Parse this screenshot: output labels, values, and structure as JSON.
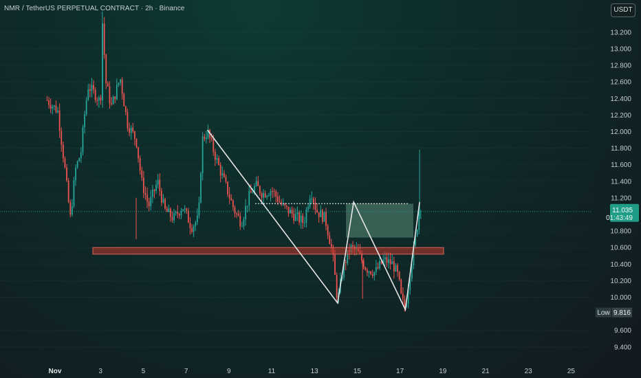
{
  "header": {
    "title": "NMR / TetherUS PERPETUAL CONTRACT · 2h · Binance",
    "currency_button": "USDT"
  },
  "colors": {
    "up": "#26a69a",
    "down": "#ef5350",
    "support_zone": "#c0392b",
    "target_box": "#8fd3b0",
    "pattern_line": "#e6e6e6",
    "price_tag": "#1f9d87"
  },
  "price_axis": {
    "ticks": [
      "13.200",
      "13.000",
      "12.800",
      "12.600",
      "12.400",
      "12.200",
      "12.000",
      "11.800",
      "11.600",
      "11.400",
      "11.200",
      "10.800",
      "10.600",
      "10.400",
      "10.200",
      "10.000",
      "9.600",
      "9.400"
    ]
  },
  "time_axis": {
    "labels": [
      "Nov",
      "3",
      "5",
      "7",
      "9",
      "11",
      "13",
      "15",
      "17",
      "19",
      "21",
      "23",
      "25"
    ]
  },
  "price_tag": {
    "price": "11.035",
    "countdown": "01:43:49"
  },
  "low_tag": {
    "label": "Low",
    "value": "9.816"
  },
  "chart_data": {
    "type": "candlestick",
    "symbol": "NMR / TetherUS PERPETUAL CONTRACT",
    "interval": "2h",
    "exchange": "Binance",
    "y_axis_ticks": [
      13.2,
      13.0,
      12.8,
      12.6,
      12.4,
      12.2,
      12.0,
      11.8,
      11.6,
      11.4,
      11.2,
      10.8,
      10.6,
      10.4,
      10.2,
      10.0,
      9.6,
      9.4
    ],
    "x_axis_ticks": [
      "Nov",
      "3",
      "5",
      "7",
      "9",
      "11",
      "13",
      "15",
      "17",
      "19",
      "21",
      "23",
      "25"
    ],
    "close_path": [
      [
        "Oct 31 12:00",
        12.38
      ],
      [
        "Nov 1 00:00",
        12.25
      ],
      [
        "Nov 1 08:00",
        11.55
      ],
      [
        "Nov 1 14:00",
        10.95
      ],
      [
        "Nov 1 20:00",
        11.55
      ],
      [
        "Nov 2 02:00",
        11.75
      ],
      [
        "Nov 2 06:00",
        12.2
      ],
      [
        "Nov 2 10:00",
        12.55
      ],
      [
        "Nov 2 18:00",
        12.45
      ],
      [
        "Nov 3 00:00",
        12.35
      ],
      [
        "Nov 3 02:00",
        13.35
      ],
      [
        "Nov 3 06:00",
        12.6
      ],
      [
        "Nov 3 12:00",
        12.3
      ],
      [
        "Nov 3 22:00",
        12.65
      ],
      [
        "Nov 4 06:00",
        12.1
      ],
      [
        "Nov 4 16:00",
        11.9
      ],
      [
        "Nov 4 22:00",
        11.4
      ],
      [
        "Nov 5 06:00",
        11.1
      ],
      [
        "Nov 5 16:00",
        11.4
      ],
      [
        "Nov 6 00:00",
        11.05
      ],
      [
        "Nov 6 10:00",
        10.95
      ],
      [
        "Nov 6 20:00",
        11.1
      ],
      [
        "Nov 7 06:00",
        10.85
      ],
      [
        "Nov 7 14:00",
        10.95
      ],
      [
        "Nov 7 18:00",
        11.9
      ],
      [
        "Nov 8 00:00",
        12.0
      ],
      [
        "Nov 8 12:00",
        11.6
      ],
      [
        "Nov 8 22:00",
        11.3
      ],
      [
        "Nov 9 06:00",
        11.05
      ],
      [
        "Nov 9 14:00",
        10.9
      ],
      [
        "Nov 9 22:00",
        11.2
      ],
      [
        "Nov 10 06:00",
        11.35
      ],
      [
        "Nov 10 14:00",
        11.25
      ],
      [
        "Nov 11 00:00",
        11.3
      ],
      [
        "Nov 11 12:00",
        11.1
      ],
      [
        "Nov 12 00:00",
        11.0
      ],
      [
        "Nov 12 12:00",
        10.9
      ],
      [
        "Nov 12 20:00",
        11.3
      ],
      [
        "Nov 13 02:00",
        11.05
      ],
      [
        "Nov 13 12:00",
        10.95
      ],
      [
        "Nov 13 20:00",
        10.55
      ],
      [
        "Nov 14 02:00",
        9.95
      ],
      [
        "Nov 14 08:00",
        10.35
      ],
      [
        "Nov 14 16:00",
        10.6
      ],
      [
        "Nov 15 00:00",
        10.55
      ],
      [
        "Nov 15 10:00",
        10.35
      ],
      [
        "Nov 15 20:00",
        10.3
      ],
      [
        "Nov 16 06:00",
        10.45
      ],
      [
        "Nov 16 16:00",
        10.4
      ],
      [
        "Nov 16 22:00",
        10.25
      ],
      [
        "Nov 17 02:00",
        9.95
      ],
      [
        "Nov 17 06:00",
        9.88
      ],
      [
        "Nov 17 12:00",
        10.35
      ],
      [
        "Nov 17 18:00",
        10.75
      ],
      [
        "Nov 17 22:00",
        11.1
      ],
      [
        "Nov 18 00:00",
        11.035
      ]
    ],
    "annotations": {
      "support_zone": [
        10.52,
        10.6
      ],
      "resistance_level": 11.13,
      "target_zone": [
        10.72,
        11.13
      ],
      "zigzag_pattern": [
        [
          "Nov 8 00:00",
          12.02
        ],
        [
          "Nov 14 02:00",
          9.93
        ],
        [
          "Nov 14 20:00",
          11.15
        ],
        [
          "Nov 17 06:00",
          9.85
        ],
        [
          "Nov 17 22:00",
          11.15
        ]
      ]
    },
    "last_price": 11.035,
    "low": 9.816
  }
}
